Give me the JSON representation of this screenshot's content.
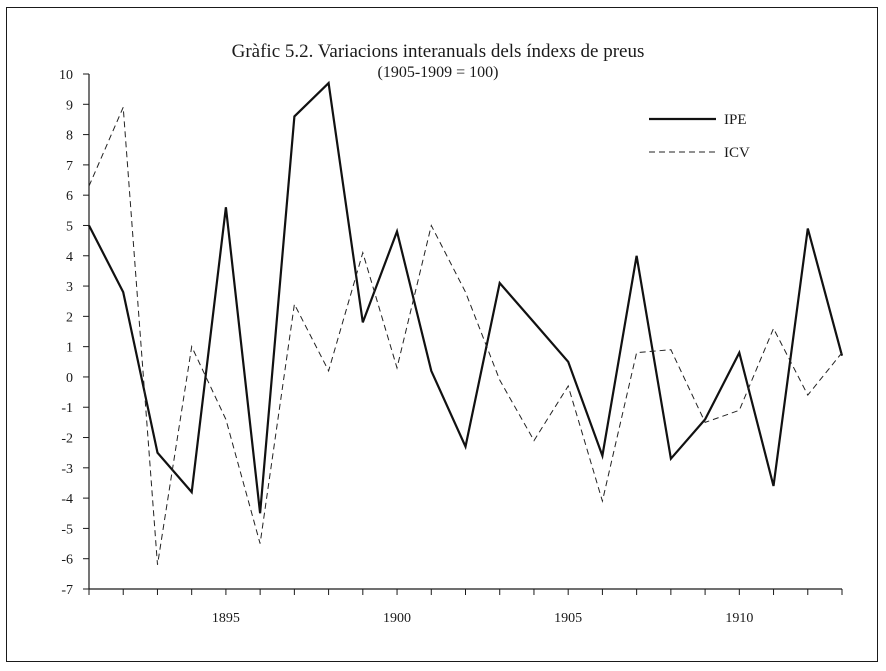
{
  "chart_data": {
    "type": "line",
    "title": "Gràfic 5.2. Variacions interanuals dels índexs de preus",
    "subtitle": "(1905-1909 = 100)",
    "xlabel": "",
    "ylabel": "",
    "xlim": [
      1891,
      1913
    ],
    "ylim": [
      -7,
      10
    ],
    "yticks": [
      -7,
      -6,
      -5,
      -4,
      -3,
      -2,
      -1,
      0,
      1,
      2,
      3,
      4,
      5,
      6,
      7,
      8,
      9,
      10
    ],
    "xtick_labels": [
      1895,
      1900,
      1905,
      1910
    ],
    "grid": false,
    "legend_position": "top-right",
    "x": [
      1891,
      1892,
      1893,
      1894,
      1895,
      1896,
      1897,
      1898,
      1899,
      1900,
      1901,
      1902,
      1903,
      1904,
      1905,
      1906,
      1907,
      1908,
      1909,
      1910,
      1911,
      1912,
      1913
    ],
    "series": [
      {
        "name": "IPE",
        "style": "solid",
        "color": "#111111",
        "values": [
          5.0,
          2.8,
          -2.5,
          -3.8,
          5.6,
          -4.5,
          8.6,
          9.7,
          1.8,
          4.8,
          0.2,
          -2.3,
          3.1,
          1.8,
          0.5,
          -2.6,
          4.0,
          -2.7,
          -1.4,
          0.8,
          -3.6,
          4.9,
          0.7
        ]
      },
      {
        "name": "ICV",
        "style": "dashed",
        "color": "#222222",
        "values": [
          6.3,
          8.9,
          -6.2,
          1.0,
          -1.4,
          -5.5,
          2.4,
          0.2,
          4.1,
          0.3,
          5.0,
          2.8,
          -0.1,
          -2.1,
          -0.3,
          -4.1,
          0.8,
          0.9,
          -1.5,
          -1.1,
          1.6,
          -0.6,
          0.8
        ]
      }
    ]
  }
}
